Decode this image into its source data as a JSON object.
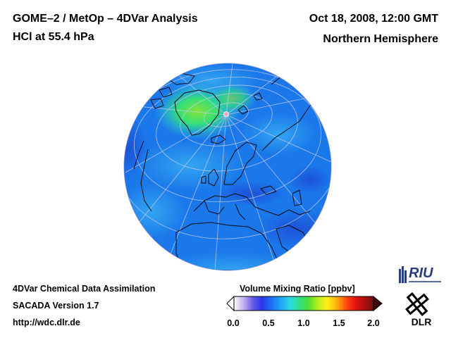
{
  "header": {
    "title_line1": "GOME–2 / MetOp – 4DVar Analysis",
    "title_line2": "HCl at 55.4 hPa",
    "date": "Oct 18, 2008, 12:00 GMT",
    "hemisphere": "Northern Hemisphere"
  },
  "footer": {
    "line1": "4DVar Chemical Data Assimilation",
    "line2": "SACADA Version 1.7",
    "line3": "http://wdc.dlr.de"
  },
  "colorbar": {
    "title": "Volume Mixing Ratio [ppbv]",
    "ticks": [
      "0.0",
      "0.5",
      "1.0",
      "1.5",
      "2.0"
    ],
    "colors": [
      "#ffffff",
      "#c6b3f0",
      "#6a5ce8",
      "#2a38e8",
      "#1e6cf2",
      "#1fa3f6",
      "#2ad7e6",
      "#2ee08a",
      "#4be030",
      "#b8ee20",
      "#fff018",
      "#ffb40f",
      "#ff5010",
      "#e8140c",
      "#b01010",
      "#6a1410"
    ]
  },
  "logos": {
    "riu": "RIU",
    "dlr": "DLR"
  },
  "map": {
    "projection": "orthographic",
    "colors": {
      "background": "#1a78ea",
      "deep": "#1e4fd6",
      "light": "#34a8f2",
      "cyan": "#2fc8e8",
      "green": "#34e078",
      "yellowgreen": "#86e23a"
    }
  }
}
